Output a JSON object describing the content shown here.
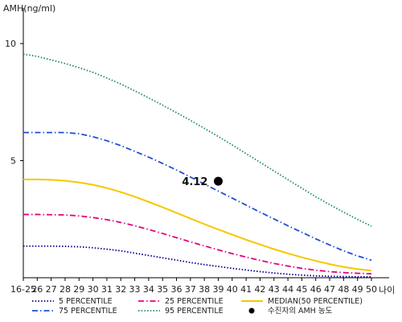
{
  "chart_data": {
    "type": "line",
    "ylabel": "AMH(ng/ml)",
    "xlabel": "나이",
    "x_categories": [
      "16-25",
      "26",
      "27",
      "28",
      "29",
      "30",
      "31",
      "32",
      "33",
      "34",
      "35",
      "36",
      "37",
      "38",
      "39",
      "40",
      "41",
      "42",
      "43",
      "44",
      "45",
      "46",
      "47",
      "48",
      "49",
      "50"
    ],
    "ylim": [
      0,
      11
    ],
    "yticks": [
      5,
      10
    ],
    "grid": false,
    "series": [
      {
        "name": "5 PERCENTILE",
        "color": "#00008b",
        "style": "dotted",
        "values": [
          1.35,
          1.35,
          1.35,
          1.34,
          1.32,
          1.28,
          1.22,
          1.15,
          1.05,
          0.95,
          0.85,
          0.75,
          0.65,
          0.56,
          0.48,
          0.4,
          0.33,
          0.26,
          0.2,
          0.15,
          0.11,
          0.08,
          0.06,
          0.05,
          0.04,
          0.04
        ]
      },
      {
        "name": "25 PERCENTILE",
        "color": "#e6007e",
        "style": "dashdot",
        "values": [
          2.7,
          2.7,
          2.69,
          2.68,
          2.64,
          2.57,
          2.48,
          2.36,
          2.22,
          2.06,
          1.89,
          1.71,
          1.53,
          1.36,
          1.19,
          1.03,
          0.88,
          0.74,
          0.61,
          0.5,
          0.4,
          0.32,
          0.26,
          0.22,
          0.19,
          0.17
        ]
      },
      {
        "name": "MEDIAN(50 PERCENTILE)",
        "color": "#f5c800",
        "style": "solid",
        "values": [
          4.2,
          4.2,
          4.18,
          4.14,
          4.07,
          3.97,
          3.83,
          3.66,
          3.46,
          3.24,
          3.01,
          2.77,
          2.53,
          2.29,
          2.06,
          1.84,
          1.62,
          1.42,
          1.22,
          1.04,
          0.87,
          0.72,
          0.58,
          0.46,
          0.37,
          0.3
        ]
      },
      {
        "name": "75 PERCENTILE",
        "color": "#1f4fd1",
        "style": "dashdot",
        "values": [
          6.2,
          6.2,
          6.2,
          6.2,
          6.15,
          6.02,
          5.85,
          5.64,
          5.4,
          5.15,
          4.88,
          4.6,
          4.3,
          4.0,
          3.7,
          3.4,
          3.1,
          2.8,
          2.51,
          2.22,
          1.94,
          1.66,
          1.4,
          1.15,
          0.93,
          0.75
        ]
      },
      {
        "name": "95 PERCENTILE",
        "color": "#1e8c5a",
        "style": "dotted",
        "values": [
          9.55,
          9.45,
          9.3,
          9.15,
          8.97,
          8.77,
          8.53,
          8.27,
          7.98,
          7.68,
          7.37,
          7.05,
          6.72,
          6.38,
          6.03,
          5.67,
          5.3,
          4.93,
          4.56,
          4.19,
          3.82,
          3.46,
          3.12,
          2.8,
          2.49,
          2.2
        ]
      }
    ],
    "highlight_point": {
      "name": "수진자의 AMH 농도",
      "x": "39",
      "value": 4.12,
      "label": "4.12",
      "color": "#000000"
    },
    "legend_position": "bottom"
  }
}
